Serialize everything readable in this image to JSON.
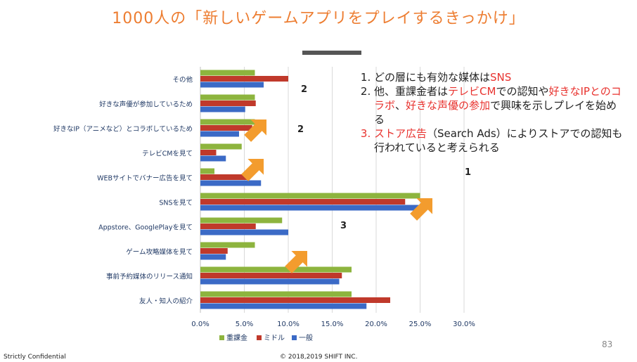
{
  "title": "1000人の「新しいゲームアプリをプレイするきっかけ」",
  "chart_data": {
    "type": "bar",
    "orientation": "horizontal",
    "categories": [
      "その他",
      "好きな声優が参加しているため",
      "好きなIP（アニメなど）とコラボしているため",
      "テレビCMを見て",
      "WEBサイトでバナー広告を見て",
      "SNSを見て",
      "Appstore、GooglePlayを見て",
      "ゲーム攻略媒体を見て",
      "事前予約媒体のリリース通知",
      "友人・知人の紹介"
    ],
    "series": [
      {
        "name": "重課金",
        "color": "#8DB43E",
        "values": [
          6.2,
          6.2,
          6.2,
          4.7,
          1.6,
          25.0,
          9.3,
          6.2,
          17.2,
          17.2
        ]
      },
      {
        "name": "ミドル",
        "color": "#C0392B",
        "values": [
          10.0,
          6.3,
          5.9,
          1.8,
          5.3,
          23.3,
          6.3,
          3.1,
          16.1,
          21.6
        ]
      },
      {
        "name": "一般",
        "color": "#3B6AC6",
        "values": [
          7.2,
          5.1,
          4.4,
          2.9,
          6.9,
          25.6,
          10.0,
          2.9,
          15.8,
          18.9
        ]
      }
    ],
    "xlim": [
      0,
      30
    ],
    "xticks": [
      "0.0%",
      "5.0%",
      "10.0%",
      "15.0%",
      "20.0%",
      "25.0%",
      "30.0%"
    ],
    "grid": true,
    "legend_position": "bottom",
    "annotations": [
      {
        "label": "1",
        "category": "SNSを見て"
      },
      {
        "label": "2",
        "category": "好きな声優が参加しているため"
      },
      {
        "label": "2",
        "category": "テレビCMを見て"
      },
      {
        "label": "3",
        "category": "Appstore、GooglePlayを見て"
      }
    ]
  },
  "notes": {
    "item1": {
      "num": "1.",
      "a": "どの層にも有効な媒体は",
      "b": "SNS"
    },
    "item2": {
      "num": "2.",
      "a": "他、重課金者は",
      "b": "テレビCM",
      "c": "での認知や",
      "d": "好きなIPとのコラボ",
      "e": "、",
      "f": "好きな声優の参加",
      "g": "で興味を示しプレイを始める"
    },
    "item3": {
      "num": "3.",
      "a": "ストア広告",
      "b": "（Search Ads）によりストアでの認知も行われていると考えられる"
    }
  },
  "colors": {
    "title": "#ED7D31",
    "arrow": "#F39C2E",
    "highlight": "#E8322E"
  },
  "page_number": "83",
  "footer_left": "Strictly Confidential",
  "footer_center": "© 2018,2019 SHIFT INC."
}
